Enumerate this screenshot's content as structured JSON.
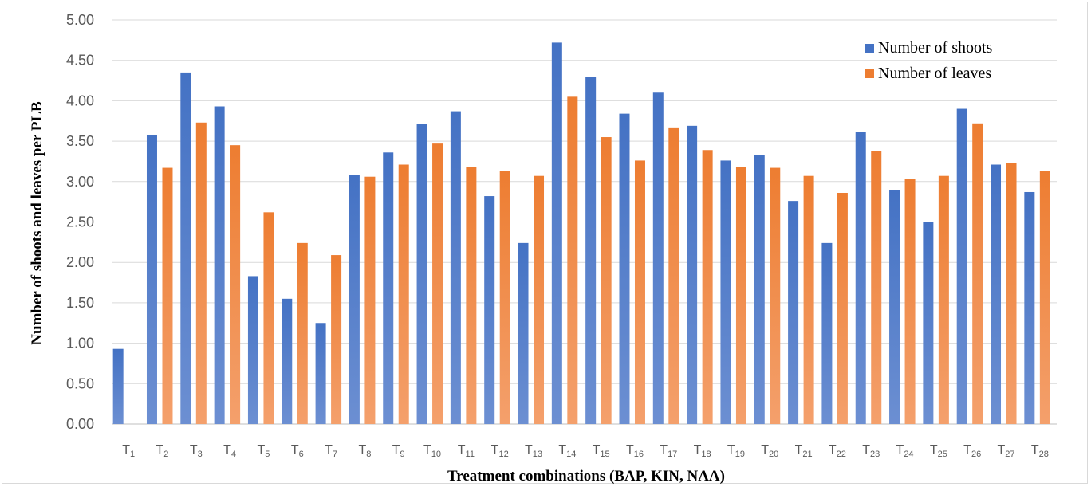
{
  "chart_data": {
    "type": "bar",
    "title": "",
    "xlabel": "Treatment combinations (BAP, KIN, NAA)",
    "ylabel": "Number of shoots and leaves per PLB",
    "ylim": [
      0,
      5
    ],
    "yticks": [
      "0.00",
      "0.50",
      "1.00",
      "1.50",
      "2.00",
      "2.50",
      "3.00",
      "3.50",
      "4.00",
      "4.50",
      "5.00"
    ],
    "grid": true,
    "legend_position": "top-right",
    "categories": [
      {
        "base": "T",
        "sub": "1"
      },
      {
        "base": "T",
        "sub": "2"
      },
      {
        "base": "T",
        "sub": "3"
      },
      {
        "base": "T",
        "sub": "4"
      },
      {
        "base": "T",
        "sub": "5"
      },
      {
        "base": "T",
        "sub": "6"
      },
      {
        "base": "T",
        "sub": "7"
      },
      {
        "base": "T",
        "sub": "8"
      },
      {
        "base": "T",
        "sub": "9"
      },
      {
        "base": "T",
        "sub": "10"
      },
      {
        "base": "T",
        "sub": "11"
      },
      {
        "base": "T",
        "sub": "12"
      },
      {
        "base": "T",
        "sub": "13"
      },
      {
        "base": "T",
        "sub": "14"
      },
      {
        "base": "T",
        "sub": "15"
      },
      {
        "base": "T",
        "sub": "16"
      },
      {
        "base": "T",
        "sub": "17"
      },
      {
        "base": "T",
        "sub": "18"
      },
      {
        "base": "T",
        "sub": "19"
      },
      {
        "base": "T",
        "sub": "20"
      },
      {
        "base": "T",
        "sub": "21"
      },
      {
        "base": "T",
        "sub": "22"
      },
      {
        "base": "T",
        "sub": "23"
      },
      {
        "base": "T",
        "sub": "24"
      },
      {
        "base": "T",
        "sub": "25"
      },
      {
        "base": "T",
        "sub": "26"
      },
      {
        "base": "T",
        "sub": "27"
      },
      {
        "base": "T",
        "sub": "28"
      }
    ],
    "series": [
      {
        "name": "Number of shoots",
        "color": "#4472c4",
        "values": [
          0.93,
          3.58,
          4.35,
          3.93,
          1.83,
          1.55,
          1.25,
          3.08,
          3.36,
          3.71,
          3.87,
          2.82,
          2.24,
          4.72,
          4.29,
          3.84,
          4.1,
          3.69,
          3.26,
          3.33,
          2.76,
          2.24,
          3.61,
          2.89,
          2.5,
          3.9,
          3.21,
          2.87
        ]
      },
      {
        "name": "Number of leaves",
        "color": "#ed7d31",
        "values": [
          0.0,
          3.17,
          3.73,
          3.45,
          2.62,
          2.24,
          2.09,
          3.06,
          3.21,
          3.47,
          3.18,
          3.13,
          3.07,
          4.05,
          3.55,
          3.26,
          3.67,
          3.39,
          3.18,
          3.17,
          3.07,
          2.86,
          3.38,
          3.03,
          3.07,
          3.72,
          3.23,
          3.13
        ]
      }
    ]
  }
}
